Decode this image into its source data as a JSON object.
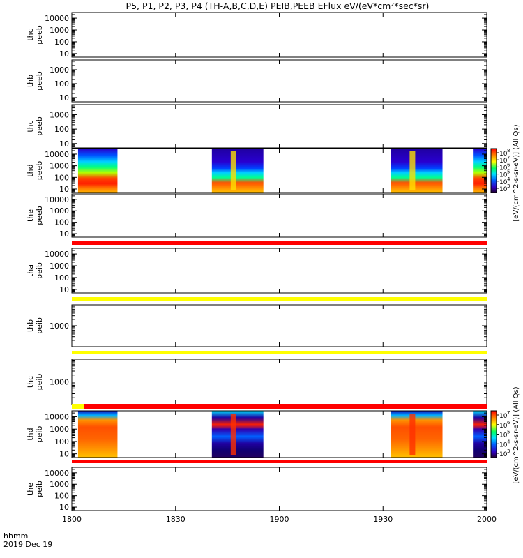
{
  "title": "P5, P1, P2, P3, P4 (TH-A,B,C,D,E) PEIB,PEEB EFlux eV/(eV*cm²*sec*sr)",
  "chart_data": {
    "type": "heatmap",
    "title": "P5, P1, P2, P3, P4 (TH-A,B,C,D,E) PEIB,PEEB EFlux eV/(eV*cm²*sec*sr)",
    "x_label_line1": "hhmm",
    "x_label_line2": "2019 Dec 19",
    "x_range_minutes": [
      0,
      120
    ],
    "x_ticks": [
      {
        "minute": 0,
        "label": "1800"
      },
      {
        "minute": 30,
        "label": "1830"
      },
      {
        "minute": 60,
        "label": "1900"
      },
      {
        "minute": 90,
        "label": "1930"
      },
      {
        "minute": 120,
        "label": "2000"
      }
    ],
    "y_scale": "log",
    "panels": [
      {
        "probe": "thc",
        "type": "peeb",
        "y_ticks": [
          "10000",
          "1000",
          "100",
          "10"
        ],
        "y_range": [
          5,
          30000
        ],
        "colorbar": false,
        "blocks": [],
        "bar_below": null
      },
      {
        "probe": "thb",
        "type": "peeb",
        "y_ticks": [
          "1000",
          "100",
          "10"
        ],
        "y_range": [
          5,
          5000
        ],
        "colorbar": false,
        "blocks": [],
        "bar_below": null
      },
      {
        "probe": "thc",
        "type": "peeb",
        "y_ticks": [
          "1000",
          "100",
          "10"
        ],
        "y_range": [
          5,
          5000
        ],
        "colorbar": false,
        "blocks": [],
        "bar_below": null
      },
      {
        "probe": "thd",
        "type": "peeb",
        "y_ticks": [
          "10000",
          "1000",
          "100",
          "10"
        ],
        "y_range": [
          5,
          30000
        ],
        "colorbar": true,
        "blocks": [
          {
            "start": 1.8,
            "end": 13.2
          },
          {
            "start": 40.5,
            "end": 55.4
          },
          {
            "start": 92.2,
            "end": 107.2
          },
          {
            "start": 116.2,
            "end": 120
          }
        ],
        "bar_below": null
      },
      {
        "probe": "the",
        "type": "peeb",
        "y_ticks": [
          "10000",
          "1000",
          "100",
          "10"
        ],
        "y_range": [
          5,
          30000
        ],
        "colorbar": false,
        "blocks": [],
        "bar_below": "red"
      },
      {
        "probe": "tha",
        "type": "peib",
        "y_ticks": [
          "10000",
          "1000",
          "100",
          "10"
        ],
        "y_range": [
          5,
          30000
        ],
        "colorbar": false,
        "blocks": [],
        "bar_below": "yellow"
      },
      {
        "probe": "thb",
        "type": "peib",
        "y_ticks": [
          "1000"
        ],
        "y_range": [
          100,
          10000
        ],
        "colorbar": false,
        "blocks": [],
        "bar_below": "yellow"
      },
      {
        "probe": "thc",
        "type": "peib",
        "y_ticks": [
          "1000"
        ],
        "y_range": [
          100,
          10000
        ],
        "colorbar": false,
        "blocks": [],
        "bar_below": "mixed"
      },
      {
        "probe": "thd",
        "type": "peib",
        "y_ticks": [
          "10000",
          "1000",
          "100",
          "10"
        ],
        "y_range": [
          5,
          30000
        ],
        "colorbar": true,
        "blocks": [
          {
            "start": 1.8,
            "end": 13.2
          },
          {
            "start": 40.5,
            "end": 55.4
          },
          {
            "start": 92.2,
            "end": 107.2
          },
          {
            "start": 116.2,
            "end": 120
          }
        ],
        "bar_below": "red"
      },
      {
        "probe": "the",
        "type": "peib",
        "y_ticks": [
          "10000",
          "1000",
          "100",
          "10"
        ],
        "y_range": [
          5,
          30000
        ],
        "colorbar": false,
        "blocks": [],
        "bar_below": null
      }
    ],
    "colorbars": [
      {
        "panel": 3,
        "label": "[eV/(cm^2-s-sr-eV)] (All Qs)",
        "ticks": [
          {
            "base": "10",
            "exp": "8"
          },
          {
            "base": "10",
            "exp": "7"
          },
          {
            "base": "10",
            "exp": "6"
          },
          {
            "base": "10",
            "exp": "5"
          },
          {
            "base": "10",
            "exp": "4"
          },
          {
            "base": "10",
            "exp": "3"
          }
        ]
      },
      {
        "panel": 8,
        "label": "[eV/(cm^2-s-sr-eV)] (All Qs)",
        "ticks": [
          {
            "base": "10",
            "exp": "7"
          },
          {
            "base": "10",
            "exp": "6"
          },
          {
            "base": "10",
            "exp": "5"
          },
          {
            "base": "10",
            "exp": "4"
          },
          {
            "base": "10",
            "exp": "3"
          }
        ]
      }
    ],
    "colors": {
      "red": "#ff0000",
      "yellow": "#ffff00",
      "frame": "#000000"
    }
  }
}
